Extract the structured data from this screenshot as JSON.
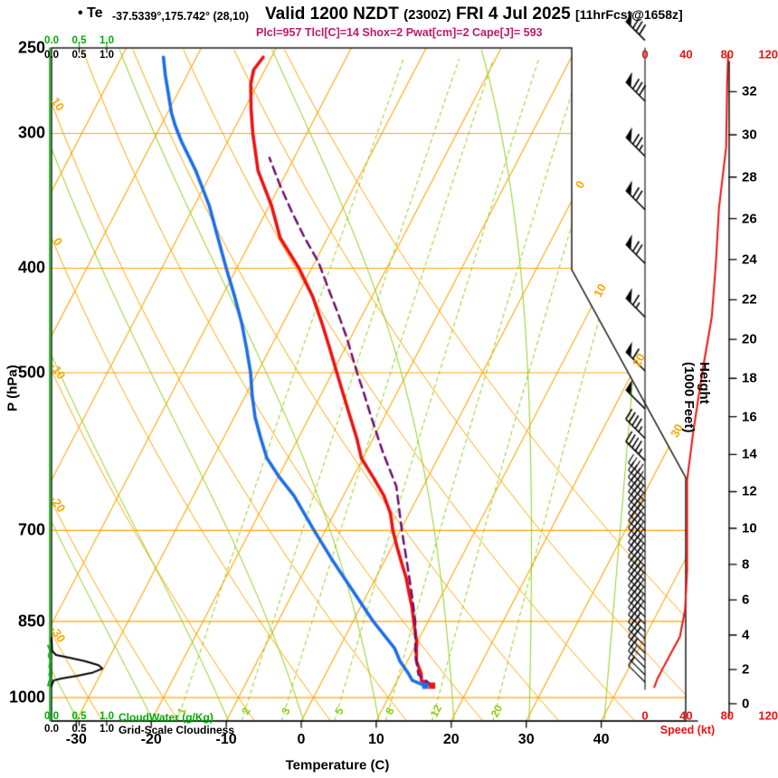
{
  "header": {
    "station": "• Te",
    "coords": "-37.5339°,175.742° (28,10)",
    "valid": "Valid 1200 NZDT",
    "zulu": "(2300Z)",
    "date": "FRI 4 Jul 2025",
    "fcst": "[11hrFcst@1658z]",
    "params": "Plcl=957 Tlcl[C]=14 Shox=2 Pwat[cm]=2 Cape[J]= 593"
  },
  "colors": {
    "isotherm_orange": "#FFA500",
    "grid_green": "#8CCE14",
    "axis_green": "#00AE00",
    "temp_red": "#EE1111",
    "dew_blue": "#1C6EE8",
    "parcel_purple": "#6E0E6E",
    "speed_red": "#EE1111",
    "params_magenta": "#C2186A",
    "frame_black": "#1a1a1a"
  },
  "chart_data": {
    "type": "line",
    "subtype": "skewt-log-p-sounding",
    "pressure_axis": {
      "label": "P (hPa)",
      "ticks": [
        250,
        300,
        400,
        500,
        700,
        850,
        1000
      ]
    },
    "temperature_axis": {
      "label": "Temperature (C)",
      "ticks": [
        -30,
        -20,
        -10,
        0,
        10,
        20,
        30,
        40
      ]
    },
    "height_axis": {
      "label": "Height (1000 Feet)",
      "ticks": [
        0,
        2,
        4,
        6,
        8,
        10,
        12,
        14,
        16,
        18,
        20,
        22,
        24,
        26,
        28,
        30,
        32
      ]
    },
    "speed_axis": {
      "label": "Speed (kt)",
      "ticks": [
        0,
        40,
        80,
        120
      ]
    },
    "cloud_axes": {
      "cloudwater_label": "CloudWater (g/Kg)",
      "cloudiness_label": "Grid-Scale Cloudiness",
      "tick_labels": [
        "0.0",
        "0.5",
        "1.0"
      ],
      "tick_values": [
        0,
        0.5,
        1
      ]
    },
    "grid": {
      "isotherm_step_c": 10,
      "isotherm_labels_right": [
        0,
        10,
        20,
        30
      ],
      "dry_adiabat_labels_left": [
        10,
        0,
        -10,
        -20,
        -30
      ],
      "mixing_ratio_gkg": [
        1,
        2,
        3,
        5,
        8,
        12,
        20
      ],
      "moist_adiabats_c": [
        -30,
        -20,
        -10,
        0,
        10,
        20,
        30,
        40
      ]
    },
    "temperature_profile_c": [
      [
        975,
        15.0
      ],
      [
        964,
        13.2
      ],
      [
        950,
        12.7
      ],
      [
        925,
        11.2
      ],
      [
        900,
        10.3
      ],
      [
        890,
        10.0
      ],
      [
        875,
        9.3
      ],
      [
        850,
        8.1
      ],
      [
        825,
        6.9
      ],
      [
        800,
        5.5
      ],
      [
        775,
        4.1
      ],
      [
        750,
        2.4
      ],
      [
        725,
        0.7
      ],
      [
        700,
        -1.0
      ],
      [
        675,
        -2.5
      ],
      [
        650,
        -4.6
      ],
      [
        625,
        -7.3
      ],
      [
        600,
        -10.2
      ],
      [
        575,
        -12.2
      ],
      [
        550,
        -14.5
      ],
      [
        525,
        -16.9
      ],
      [
        500,
        -19.4
      ],
      [
        475,
        -22.0
      ],
      [
        450,
        -24.8
      ],
      [
        425,
        -27.9
      ],
      [
        400,
        -31.7
      ],
      [
        375,
        -36.3
      ],
      [
        350,
        -39.7
      ],
      [
        325,
        -43.9
      ],
      [
        300,
        -47.2
      ],
      [
        285,
        -49.1
      ],
      [
        270,
        -50.9
      ],
      [
        262,
        -51.5
      ],
      [
        255,
        -51.1
      ]
    ],
    "dewpoint_profile_c": [
      [
        975,
        14.1
      ],
      [
        964,
        12.0
      ],
      [
        950,
        11.0
      ],
      [
        925,
        9.0
      ],
      [
        900,
        7.4
      ],
      [
        850,
        2.7
      ],
      [
        800,
        -1.8
      ],
      [
        750,
        -6.6
      ],
      [
        700,
        -11.5
      ],
      [
        650,
        -16.6
      ],
      [
        625,
        -19.8
      ],
      [
        600,
        -22.8
      ],
      [
        575,
        -25.0
      ],
      [
        550,
        -27.2
      ],
      [
        525,
        -29.1
      ],
      [
        500,
        -30.9
      ],
      [
        475,
        -33.1
      ],
      [
        450,
        -35.5
      ],
      [
        425,
        -38.3
      ],
      [
        400,
        -41.4
      ],
      [
        375,
        -44.6
      ],
      [
        350,
        -48.0
      ],
      [
        325,
        -52.2
      ],
      [
        305,
        -56.2
      ],
      [
        295,
        -58.1
      ],
      [
        287,
        -59.5
      ],
      [
        277,
        -61.0
      ],
      [
        265,
        -62.9
      ],
      [
        255,
        -64.4
      ]
    ],
    "parcel_profile_c": [
      [
        975,
        15.0
      ],
      [
        952,
        12.4
      ],
      [
        912,
        10.6
      ],
      [
        850,
        8.3
      ],
      [
        803,
        6.0
      ],
      [
        753,
        3.3
      ],
      [
        700,
        0.2
      ],
      [
        637,
        -3.6
      ],
      [
        593,
        -7.7
      ],
      [
        549,
        -11.8
      ],
      [
        521,
        -14.5
      ],
      [
        500,
        -16.7
      ],
      [
        464,
        -20.5
      ],
      [
        441,
        -23.3
      ],
      [
        419,
        -26.2
      ],
      [
        395,
        -29.5
      ],
      [
        374,
        -33.2
      ],
      [
        355,
        -36.5
      ],
      [
        335,
        -40.0
      ],
      [
        316,
        -43.3
      ]
    ],
    "wind_speed_profile_kt": [
      [
        253,
        81
      ],
      [
        270,
        80
      ],
      [
        309,
        79
      ],
      [
        352,
        72
      ],
      [
        396,
        69
      ],
      [
        444,
        65
      ],
      [
        498,
        56
      ],
      [
        567,
        47
      ],
      [
        629,
        41
      ],
      [
        700,
        41
      ],
      [
        763,
        41
      ],
      [
        829,
        39
      ],
      [
        878,
        34
      ],
      [
        907,
        26
      ],
      [
        937,
        18
      ],
      [
        961,
        12
      ],
      [
        978,
        9
      ]
    ],
    "wind_barbs_kt": [
      [
        246,
        80
      ],
      [
        280,
        80
      ],
      [
        315,
        75
      ],
      [
        353,
        70
      ],
      [
        396,
        70
      ],
      [
        444,
        65
      ],
      [
        498,
        60
      ],
      [
        540,
        50
      ],
      [
        575,
        45
      ],
      [
        603,
        45
      ]
    ],
    "grid_scale_cloudiness": [
      [
        880,
        0
      ],
      [
        905,
        0.01
      ],
      [
        913,
        0.08
      ],
      [
        918,
        0.3
      ],
      [
        925,
        0.6
      ],
      [
        933,
        0.85
      ],
      [
        940,
        0.92
      ],
      [
        948,
        0.75
      ],
      [
        955,
        0.45
      ],
      [
        960,
        0.18
      ],
      [
        964,
        0.04
      ],
      [
        972,
        0.01
      ],
      [
        976,
        0
      ]
    ],
    "cloud_water_gkg": [
      [
        895,
        0
      ],
      [
        905,
        0.04
      ],
      [
        915,
        0.01
      ],
      [
        925,
        0.06
      ],
      [
        935,
        0.02
      ],
      [
        945,
        0.05
      ],
      [
        952,
        0.02
      ],
      [
        958,
        0.06
      ],
      [
        966,
        0.02
      ],
      [
        975,
        0
      ]
    ],
    "surface": {
      "pressure_hpa": 975,
      "temp_c": 15.0,
      "dewpoint_c": 14.1
    }
  }
}
